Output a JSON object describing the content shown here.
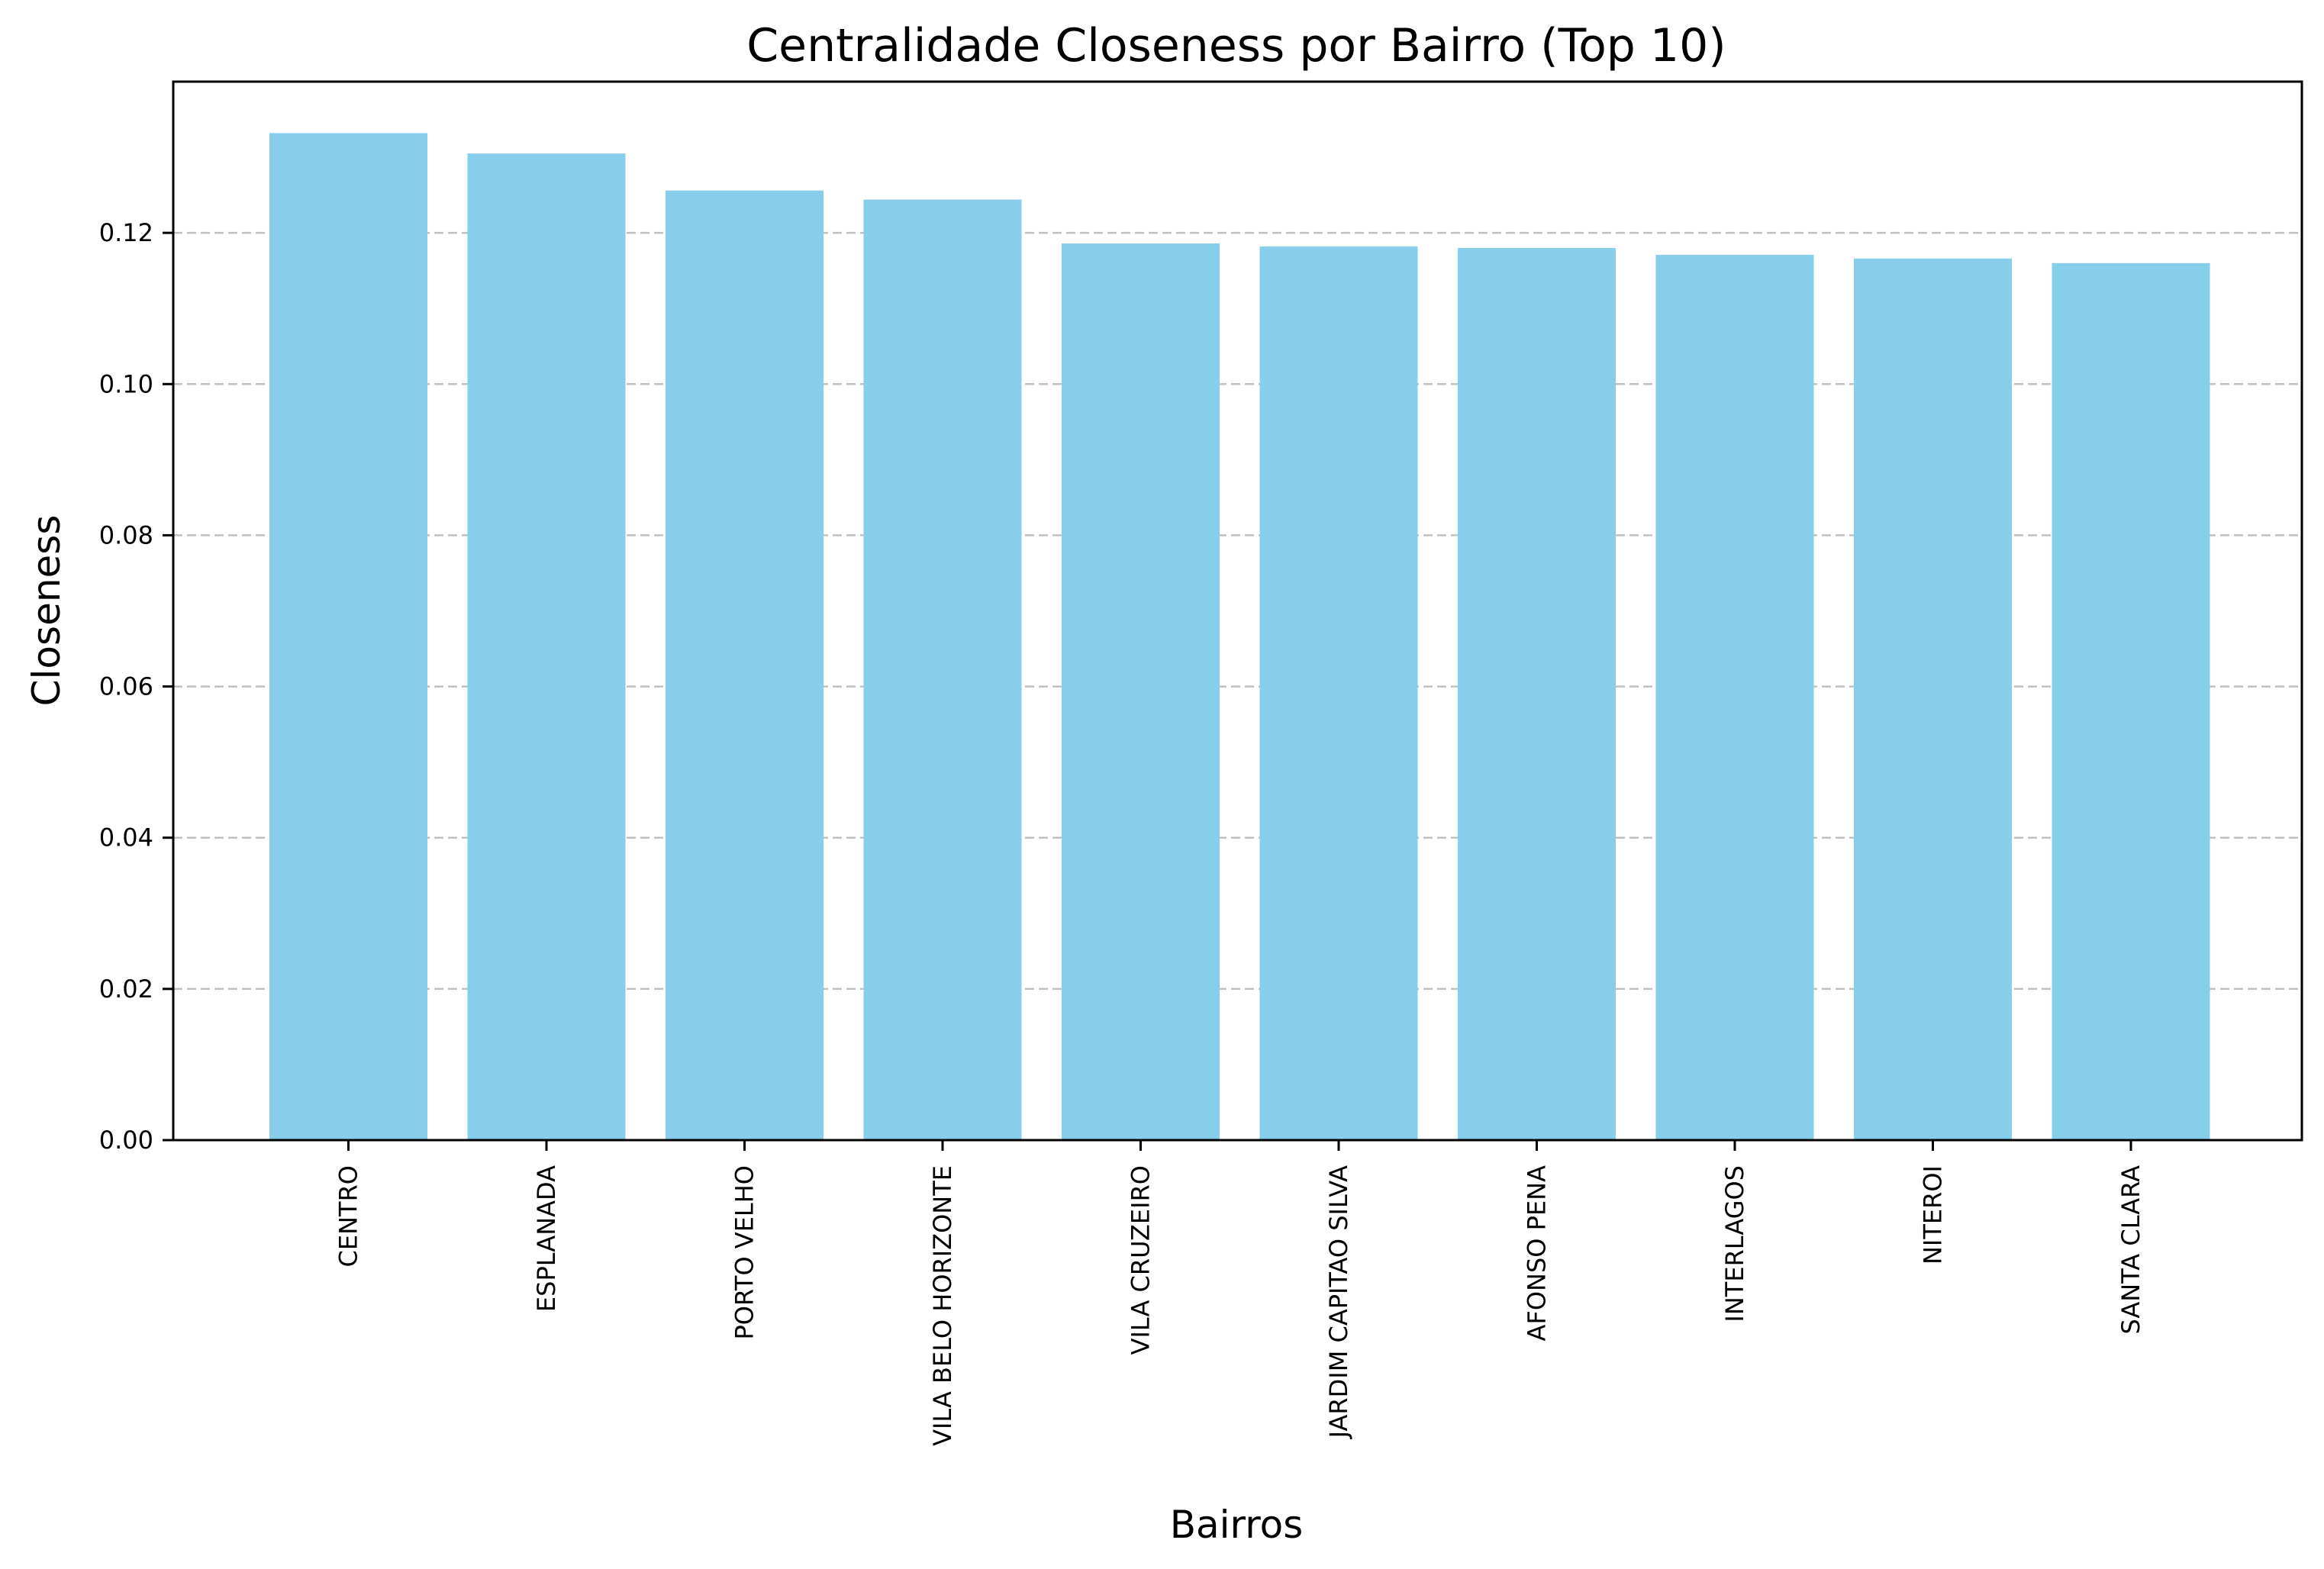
{
  "chart_data": {
    "type": "bar",
    "title": "Centralidade Closeness por Bairro (Top 10)",
    "xlabel": "Bairros",
    "ylabel": "Closeness",
    "categories": [
      "CENTRO",
      "ESPLANADA",
      "PORTO VELHO",
      "VILA BELO HORIZONTE",
      "VILA CRUZEIRO",
      "JARDIM CAPITAO SILVA",
      "AFONSO PENA",
      "INTERLAGOS",
      "NITEROI",
      "SANTA CLARA"
    ],
    "values": [
      0.1332,
      0.1305,
      0.1256,
      0.1244,
      0.1186,
      0.1182,
      0.118,
      0.1171,
      0.1166,
      0.116
    ],
    "ylim": [
      0,
      0.14
    ],
    "yticks": [
      0.0,
      0.02,
      0.04,
      0.06,
      0.08,
      0.1,
      0.12
    ],
    "ytick_labels": [
      "0.00",
      "0.02",
      "0.04",
      "0.06",
      "0.08",
      "0.10",
      "0.12"
    ],
    "grid": "y, dashed",
    "colors": {
      "bar": "#87ceeb",
      "grid": "#c0c0c0",
      "axis": "#000000"
    }
  }
}
